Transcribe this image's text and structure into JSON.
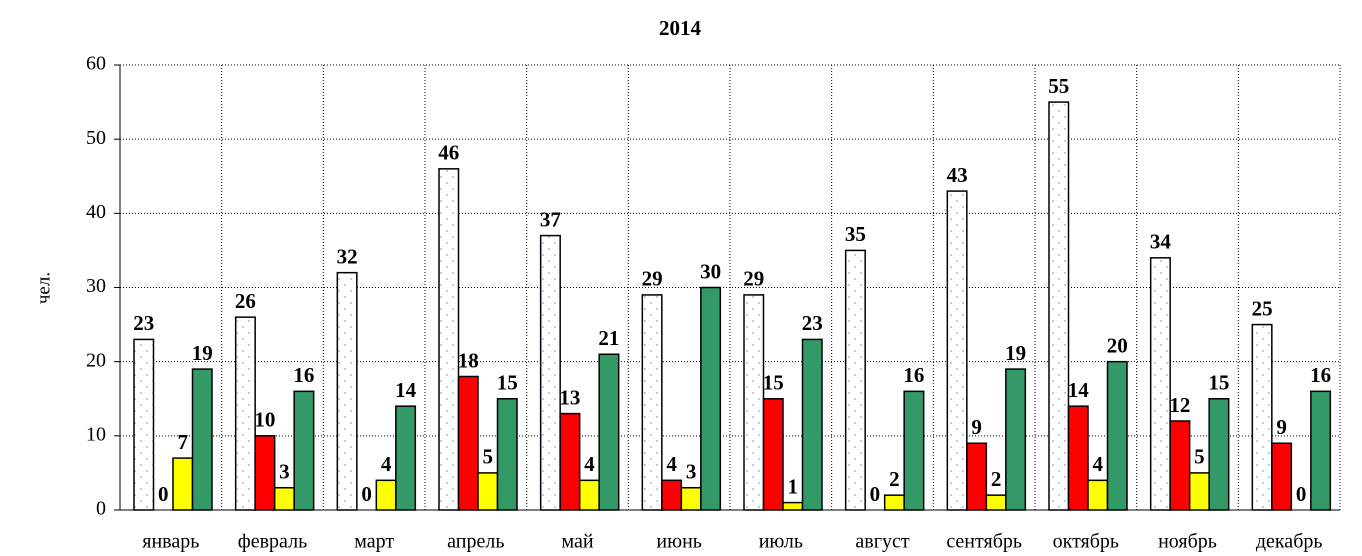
{
  "chart_data": {
    "type": "bar",
    "title": "2014",
    "y_label": "чел.",
    "categories": [
      "январь",
      "февраль",
      "март",
      "апрель",
      "май",
      "июнь",
      "июль",
      "август",
      "сентябрь",
      "октябрь",
      "ноябрь",
      "декабрь"
    ],
    "series": [
      {
        "color": "#ffffff",
        "values": [
          23,
          26,
          32,
          46,
          37,
          29,
          29,
          35,
          43,
          55,
          34,
          25
        ]
      },
      {
        "color": "#ff0000",
        "values": [
          0,
          10,
          0,
          18,
          13,
          4,
          15,
          0,
          9,
          14,
          12,
          9
        ]
      },
      {
        "color": "#ffff00",
        "values": [
          7,
          3,
          4,
          5,
          4,
          3,
          1,
          2,
          2,
          4,
          5,
          0
        ]
      },
      {
        "color": "#339966",
        "values": [
          19,
          16,
          14,
          15,
          21,
          30,
          23,
          16,
          19,
          20,
          15,
          16
        ]
      }
    ],
    "ylim": [
      0,
      60
    ],
    "yticks": [
      0,
      10,
      20,
      30,
      40,
      50,
      60
    ],
    "grid": true
  }
}
